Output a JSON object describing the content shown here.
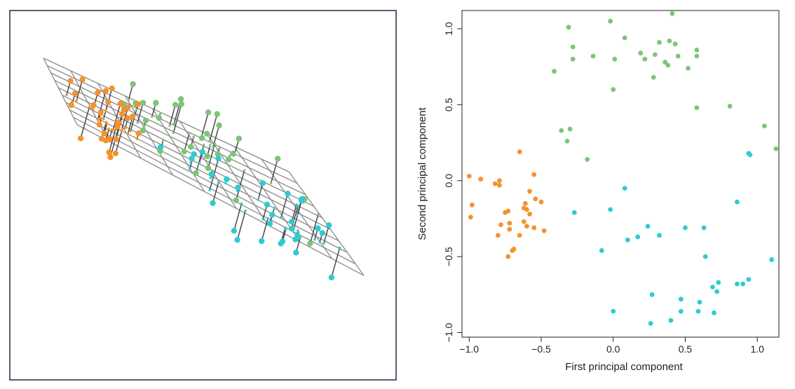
{
  "colors": {
    "green": "#7cc576",
    "orange": "#f6922d",
    "cyan": "#2fcbd0",
    "grid": "#8a8a8a",
    "stem": "#4a4a4a",
    "frame": "#1f2a44"
  },
  "chart_data": [
    {
      "type": "scatter3d",
      "description": "3D view of points projected onto the plane spanned by the first two principal components",
      "series": [
        {
          "color_key": "green",
          "count": 36
        },
        {
          "color_key": "orange",
          "count": 36
        },
        {
          "color_key": "cyan",
          "count": 38
        }
      ],
      "grid": true
    },
    {
      "type": "scatter",
      "xlabel": "First principal component",
      "ylabel": "Second principal component",
      "xlim": [
        -1.05,
        1.15
      ],
      "ylim": [
        -1.03,
        1.12
      ],
      "xticks": [
        -1.0,
        -0.5,
        0.0,
        0.5,
        1.0
      ],
      "xtick_labels": [
        "−1.0",
        "−0.5",
        "0.0",
        "0.5",
        "1.0"
      ],
      "yticks": [
        -1.0,
        -0.5,
        0.0,
        0.5,
        1.0
      ],
      "ytick_labels": [
        "−1.0",
        "−0.5",
        "0.0",
        "0.5",
        "1.0"
      ],
      "series": [
        {
          "color_key": "green",
          "x": [
            0.41,
            -0.02,
            0.08,
            -0.31,
            -0.28,
            0.32,
            0.39,
            0.43,
            0.45,
            -0.28,
            -0.14,
            0.19,
            0.22,
            0.29,
            0.58,
            0.58,
            0.36,
            0.38,
            0.52,
            -0.41,
            0.01,
            0.0,
            0.28,
            0.58,
            0.81,
            1.05,
            1.13,
            -0.36,
            -0.3,
            -0.32,
            -0.18
          ],
          "y": [
            1.1,
            1.05,
            0.94,
            1.01,
            0.88,
            0.91,
            0.92,
            0.9,
            0.82,
            0.8,
            0.82,
            0.84,
            0.8,
            0.83,
            0.86,
            0.82,
            0.78,
            0.76,
            0.74,
            0.72,
            0.8,
            0.6,
            0.68,
            0.48,
            0.49,
            0.36,
            0.21,
            0.33,
            0.34,
            0.26,
            0.14
          ]
        },
        {
          "color_key": "orange",
          "x": [
            -1.0,
            -0.92,
            -0.82,
            -0.79,
            -0.79,
            -0.98,
            -0.99,
            -0.65,
            -0.55,
            -0.58,
            -0.54,
            -0.5,
            -0.62,
            -0.6,
            -0.58,
            -0.61,
            -0.73,
            -0.75,
            -0.78,
            -0.72,
            -0.72,
            -0.6,
            -0.55,
            -0.65,
            -0.69,
            -0.8,
            -0.48,
            -0.73,
            -0.7,
            -0.62
          ],
          "y": [
            0.03,
            0.01,
            -0.02,
            0.0,
            -0.03,
            -0.16,
            -0.24,
            0.19,
            0.04,
            -0.07,
            -0.12,
            -0.14,
            -0.18,
            -0.19,
            -0.22,
            -0.15,
            -0.2,
            -0.21,
            -0.29,
            -0.28,
            -0.32,
            -0.3,
            -0.31,
            -0.36,
            -0.45,
            -0.36,
            -0.33,
            -0.5,
            -0.46,
            -0.27
          ]
        },
        {
          "color_key": "cyan",
          "x": [
            0.08,
            -0.02,
            -0.27,
            0.24,
            0.17,
            0.32,
            0.1,
            -0.08,
            0.5,
            0.63,
            0.64,
            0.86,
            0.94,
            0.95,
            1.1,
            0.27,
            0.47,
            0.6,
            0.73,
            0.72,
            0.69,
            0.86,
            0.9,
            0.94,
            0.47,
            0.59,
            0.7,
            0.4,
            0.26,
            0.0
          ],
          "y": [
            -0.05,
            -0.19,
            -0.21,
            -0.3,
            -0.37,
            -0.36,
            -0.39,
            -0.46,
            -0.31,
            -0.31,
            -0.5,
            -0.14,
            0.18,
            0.17,
            -0.52,
            -0.75,
            -0.78,
            -0.8,
            -0.67,
            -0.73,
            -0.7,
            -0.68,
            -0.68,
            -0.65,
            -0.86,
            -0.86,
            -0.87,
            -0.92,
            -0.94,
            -0.86
          ]
        }
      ]
    }
  ]
}
